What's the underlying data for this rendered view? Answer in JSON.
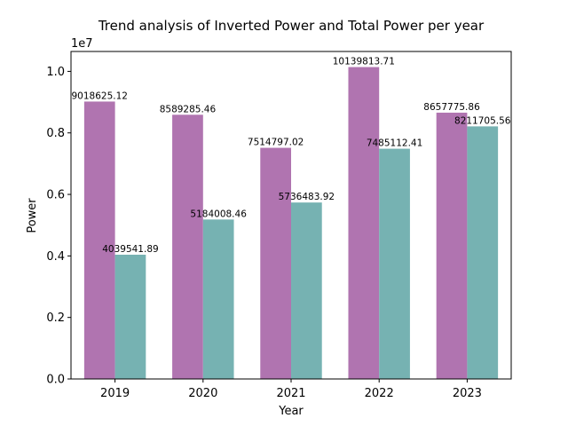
{
  "chart_data": {
    "type": "bar",
    "title": "Trend analysis of Inverted Power and Total Power per year",
    "xlabel": "Year",
    "ylabel": "Power",
    "y_offset_label": "1e7",
    "y_scale_factor": 10000000,
    "ylim": [
      0,
      10646804.4
    ],
    "yticks": [
      0,
      2000000,
      4000000,
      6000000,
      8000000,
      10000000
    ],
    "ytick_labels": [
      "0.0",
      "0.2",
      "0.4",
      "0.6",
      "0.8",
      "1.0"
    ],
    "categories": [
      "2019",
      "2020",
      "2021",
      "2022",
      "2023"
    ],
    "series": [
      {
        "color": "#b074b0",
        "values": [
          9018625.12,
          8589285.46,
          7514797.02,
          10139813.71,
          8657775.86
        ],
        "labels": [
          "9018625.12",
          "8589285.46",
          "7514797.02",
          "10139813.71",
          "8657775.86"
        ]
      },
      {
        "color": "#76b2b2",
        "values": [
          4039541.89,
          5184008.46,
          5736483.92,
          7485112.41,
          8211705.56
        ],
        "labels": [
          "4039541.89",
          "5184008.46",
          "5736483.92",
          "7485112.41",
          "8211705.56"
        ]
      }
    ],
    "grid": false,
    "legend": "none"
  }
}
